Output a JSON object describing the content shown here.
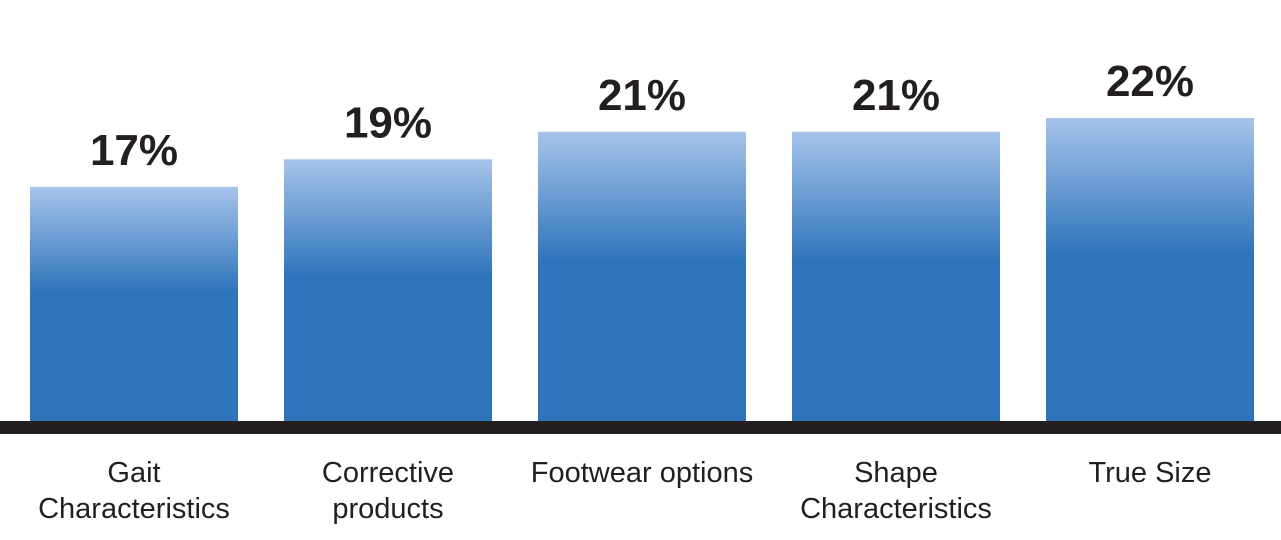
{
  "chart_data": {
    "type": "bar",
    "categories": [
      "Gait Characteristics",
      "Corrective products",
      "Footwear options",
      "Shape Characteristics",
      "True Size"
    ],
    "values": [
      17,
      19,
      21,
      21,
      22
    ],
    "value_labels": [
      "17%",
      "19%",
      "21%",
      "21%",
      "22%"
    ],
    "color": "#2e74ba"
  }
}
